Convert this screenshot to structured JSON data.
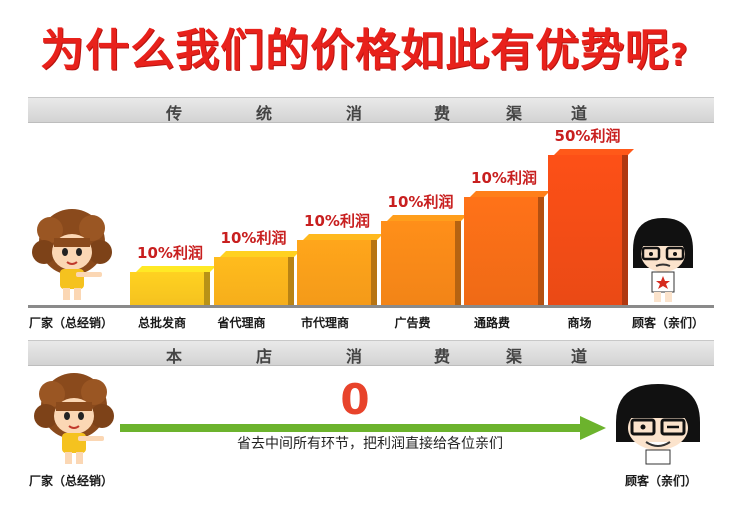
{
  "title": "为什么我们的价格如此有优势呢",
  "title_mark": "?",
  "traditional_band": {
    "chars": [
      "传",
      "统",
      "消",
      "费",
      "渠",
      "道"
    ]
  },
  "store_band": {
    "chars": [
      "本",
      "店",
      "消",
      "费",
      "渠",
      "道"
    ]
  },
  "chart_data": {
    "type": "bar",
    "categories": [
      "总批发商",
      "省代理商",
      "市代理商",
      "广告费",
      "通路费",
      "商场"
    ],
    "values": [
      10,
      10,
      10,
      10,
      10,
      50
    ],
    "data_labels": [
      "10%利润",
      "10%利润",
      "10%利润",
      "10%利润",
      "10%利润",
      "50%利润"
    ],
    "bar_colors": [
      "#f5c21f",
      "#f6ae1b",
      "#f49a19",
      "#f28417",
      "#ef6a16",
      "#ea4a15"
    ],
    "relative_heights": [
      0.22,
      0.32,
      0.43,
      0.56,
      0.72,
      1.0
    ],
    "ylim": [
      0,
      1
    ]
  },
  "left_label": "厂家（总经销）",
  "right_label": "顾客（亲们）",
  "store": {
    "value": "0",
    "caption": "省去中间所有环节，把利润直接给各位亲们",
    "left_label": "厂家（总经销）",
    "right_label": "顾客（亲们）",
    "arrow_color": "#6cb32d"
  }
}
